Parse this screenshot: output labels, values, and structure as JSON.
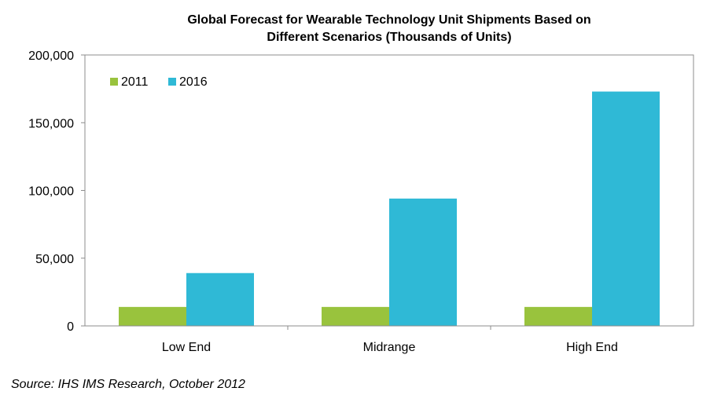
{
  "chart_data": {
    "type": "bar",
    "title_lines": [
      "Global Forecast for Wearable Technology Unit Shipments Based on",
      "Different Scenarios (Thousands of Units)"
    ],
    "categories": [
      "Low End",
      "Midrange",
      "High End"
    ],
    "series": [
      {
        "name": "2011",
        "color": "#99c33d",
        "values": [
          14000,
          14000,
          14000
        ]
      },
      {
        "name": "2016",
        "color": "#2fb9d6",
        "values": [
          39000,
          94000,
          173000
        ]
      }
    ],
    "ylim": [
      0,
      200000
    ],
    "y_ticks": [
      0,
      50000,
      100000,
      150000,
      200000
    ],
    "y_tick_labels": [
      "0",
      "50,000",
      "100,000",
      "150,000",
      "200,000"
    ],
    "grid": false,
    "legend_position": "top-left"
  },
  "source_note": "Source: IHS IMS Research, October 2012"
}
